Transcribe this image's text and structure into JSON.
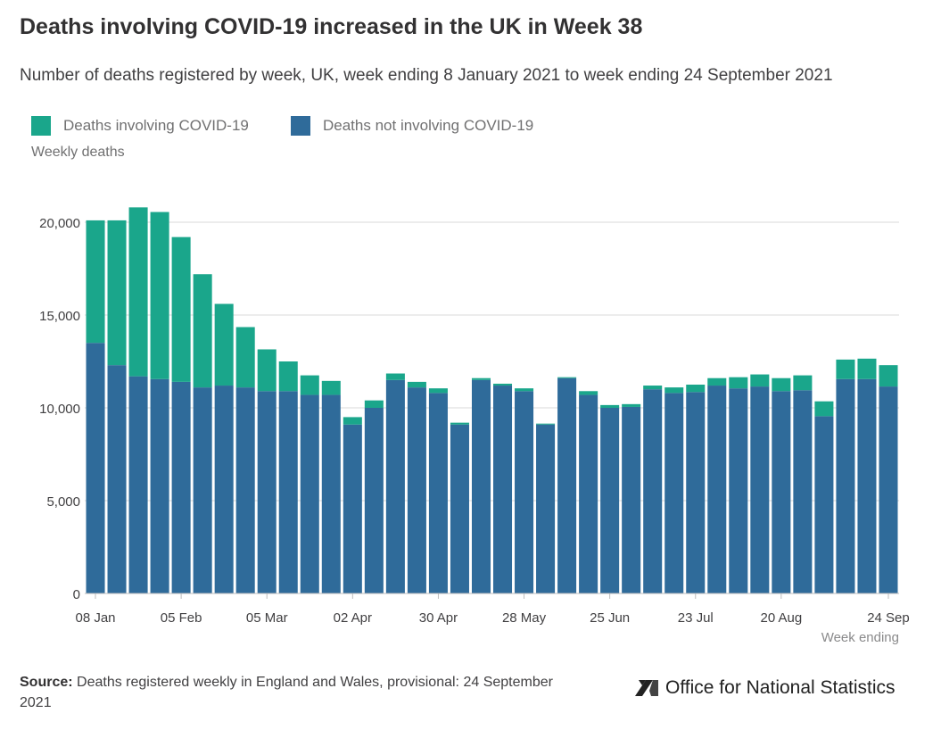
{
  "title": "Deaths involving COVID-19 increased in the UK in Week 38",
  "subtitle": "Number of deaths registered by week, UK, week ending 8 January 2021 to week ending 24 September 2021",
  "source": {
    "label": "Source:",
    "text": "Deaths registered weekly in England and Wales, provisional: 24 September 2021"
  },
  "logo": {
    "text": "Office for National Statistics"
  },
  "colors": {
    "covid": "#1aa68b",
    "non_covid": "#2f6b9a",
    "grid": "#d9d9d9",
    "axis": "#bdbdbd",
    "tick_text": "#414042"
  },
  "chart_data": {
    "type": "bar",
    "stacked": true,
    "ylabel": "Weekly deaths",
    "xlabel": "Week ending",
    "ylim": [
      0,
      22000
    ],
    "yticks": [
      0,
      5000,
      10000,
      15000,
      20000
    ],
    "ytick_labels": [
      "0",
      "5,000",
      "10,000",
      "15,000",
      "20,000"
    ],
    "grid": true,
    "legend_position": "top-left",
    "xtick_labels": [
      {
        "index": 0,
        "label": "08 Jan"
      },
      {
        "index": 4,
        "label": "05 Feb"
      },
      {
        "index": 8,
        "label": "05 Mar"
      },
      {
        "index": 12,
        "label": "02 Apr"
      },
      {
        "index": 16,
        "label": "30 Apr"
      },
      {
        "index": 20,
        "label": "28 May"
      },
      {
        "index": 24,
        "label": "25 Jun"
      },
      {
        "index": 28,
        "label": "23 Jul"
      },
      {
        "index": 32,
        "label": "20 Aug"
      },
      {
        "index": 37,
        "label": "24 Sep"
      }
    ],
    "series": [
      {
        "name": "Deaths not involving COVID-19",
        "color": "#2f6b9a",
        "values": [
          13500,
          12300,
          11700,
          11550,
          11400,
          11100,
          11200,
          11100,
          10900,
          10900,
          10700,
          10700,
          9100,
          10000,
          11500,
          11100,
          10800,
          9100,
          11500,
          11200,
          10900,
          9100,
          11600,
          10700,
          10000,
          10050,
          11000,
          10800,
          10850,
          11200,
          11050,
          11150,
          10900,
          10950,
          9550,
          11550,
          11550,
          11150
        ]
      },
      {
        "name": "Deaths involving COVID-19",
        "color": "#1aa68b",
        "values": [
          6600,
          7800,
          9100,
          9000,
          7800,
          6100,
          4400,
          3250,
          2250,
          1600,
          1050,
          750,
          400,
          400,
          350,
          300,
          250,
          100,
          100,
          100,
          150,
          50,
          50,
          200,
          150,
          150,
          200,
          300,
          400,
          400,
          600,
          650,
          700,
          800,
          800,
          1050,
          1100,
          1150
        ]
      }
    ]
  }
}
